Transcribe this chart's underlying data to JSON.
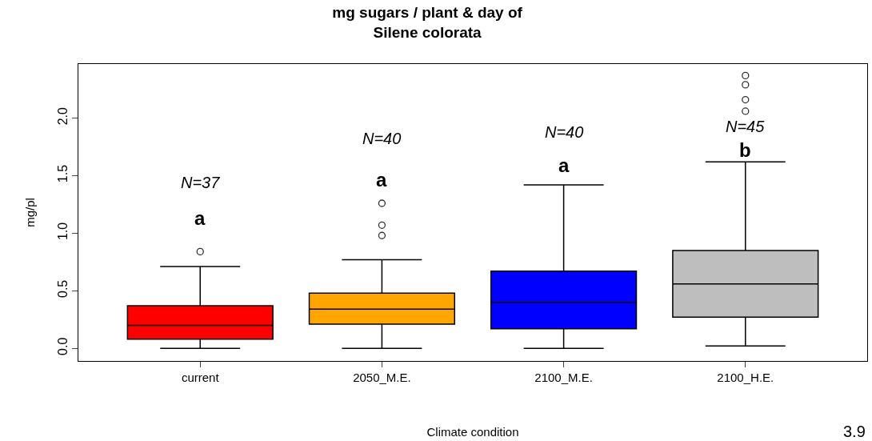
{
  "chart_data": {
    "type": "box",
    "title": "mg sugars / plant & day of\nSilene colorata",
    "xlabel": "Climate condition",
    "ylabel": "mg/pl",
    "categories": [
      "current",
      "2050_M.E.",
      "2100_M.E.",
      "2100_H.E."
    ],
    "colors": [
      "#ff0000",
      "#ffa500",
      "#0000ff",
      "#bebebe"
    ],
    "boxes": [
      {
        "low": 0.0,
        "q1": 0.08,
        "median": 0.2,
        "q3": 0.37,
        "high": 0.71,
        "outliers": [
          0.84
        ]
      },
      {
        "low": 0.0,
        "q1": 0.21,
        "median": 0.34,
        "q3": 0.48,
        "high": 0.77,
        "outliers": [
          0.98,
          1.07,
          1.26
        ]
      },
      {
        "low": 0.0,
        "q1": 0.17,
        "median": 0.4,
        "q3": 0.67,
        "high": 1.42
      },
      {
        "low": 0.02,
        "q1": 0.27,
        "median": 0.56,
        "q3": 0.85,
        "high": 1.62,
        "outliers": [
          2.06,
          2.16,
          2.29,
          2.37
        ]
      }
    ],
    "ylim": [
      -0.11,
      2.47
    ],
    "yticks": [
      {
        "value": 0,
        "label": "0.0"
      },
      {
        "value": 0.5,
        "label": "0.5"
      },
      {
        "value": 1,
        "label": "1.0"
      },
      {
        "value": 1.5,
        "label": "1.5"
      },
      {
        "value": 2,
        "label": "2.0"
      }
    ],
    "annotations": [
      "N=37",
      "a",
      "N=40",
      "a",
      "N=40",
      "a",
      "N=45",
      "b",
      "3.9"
    ]
  }
}
